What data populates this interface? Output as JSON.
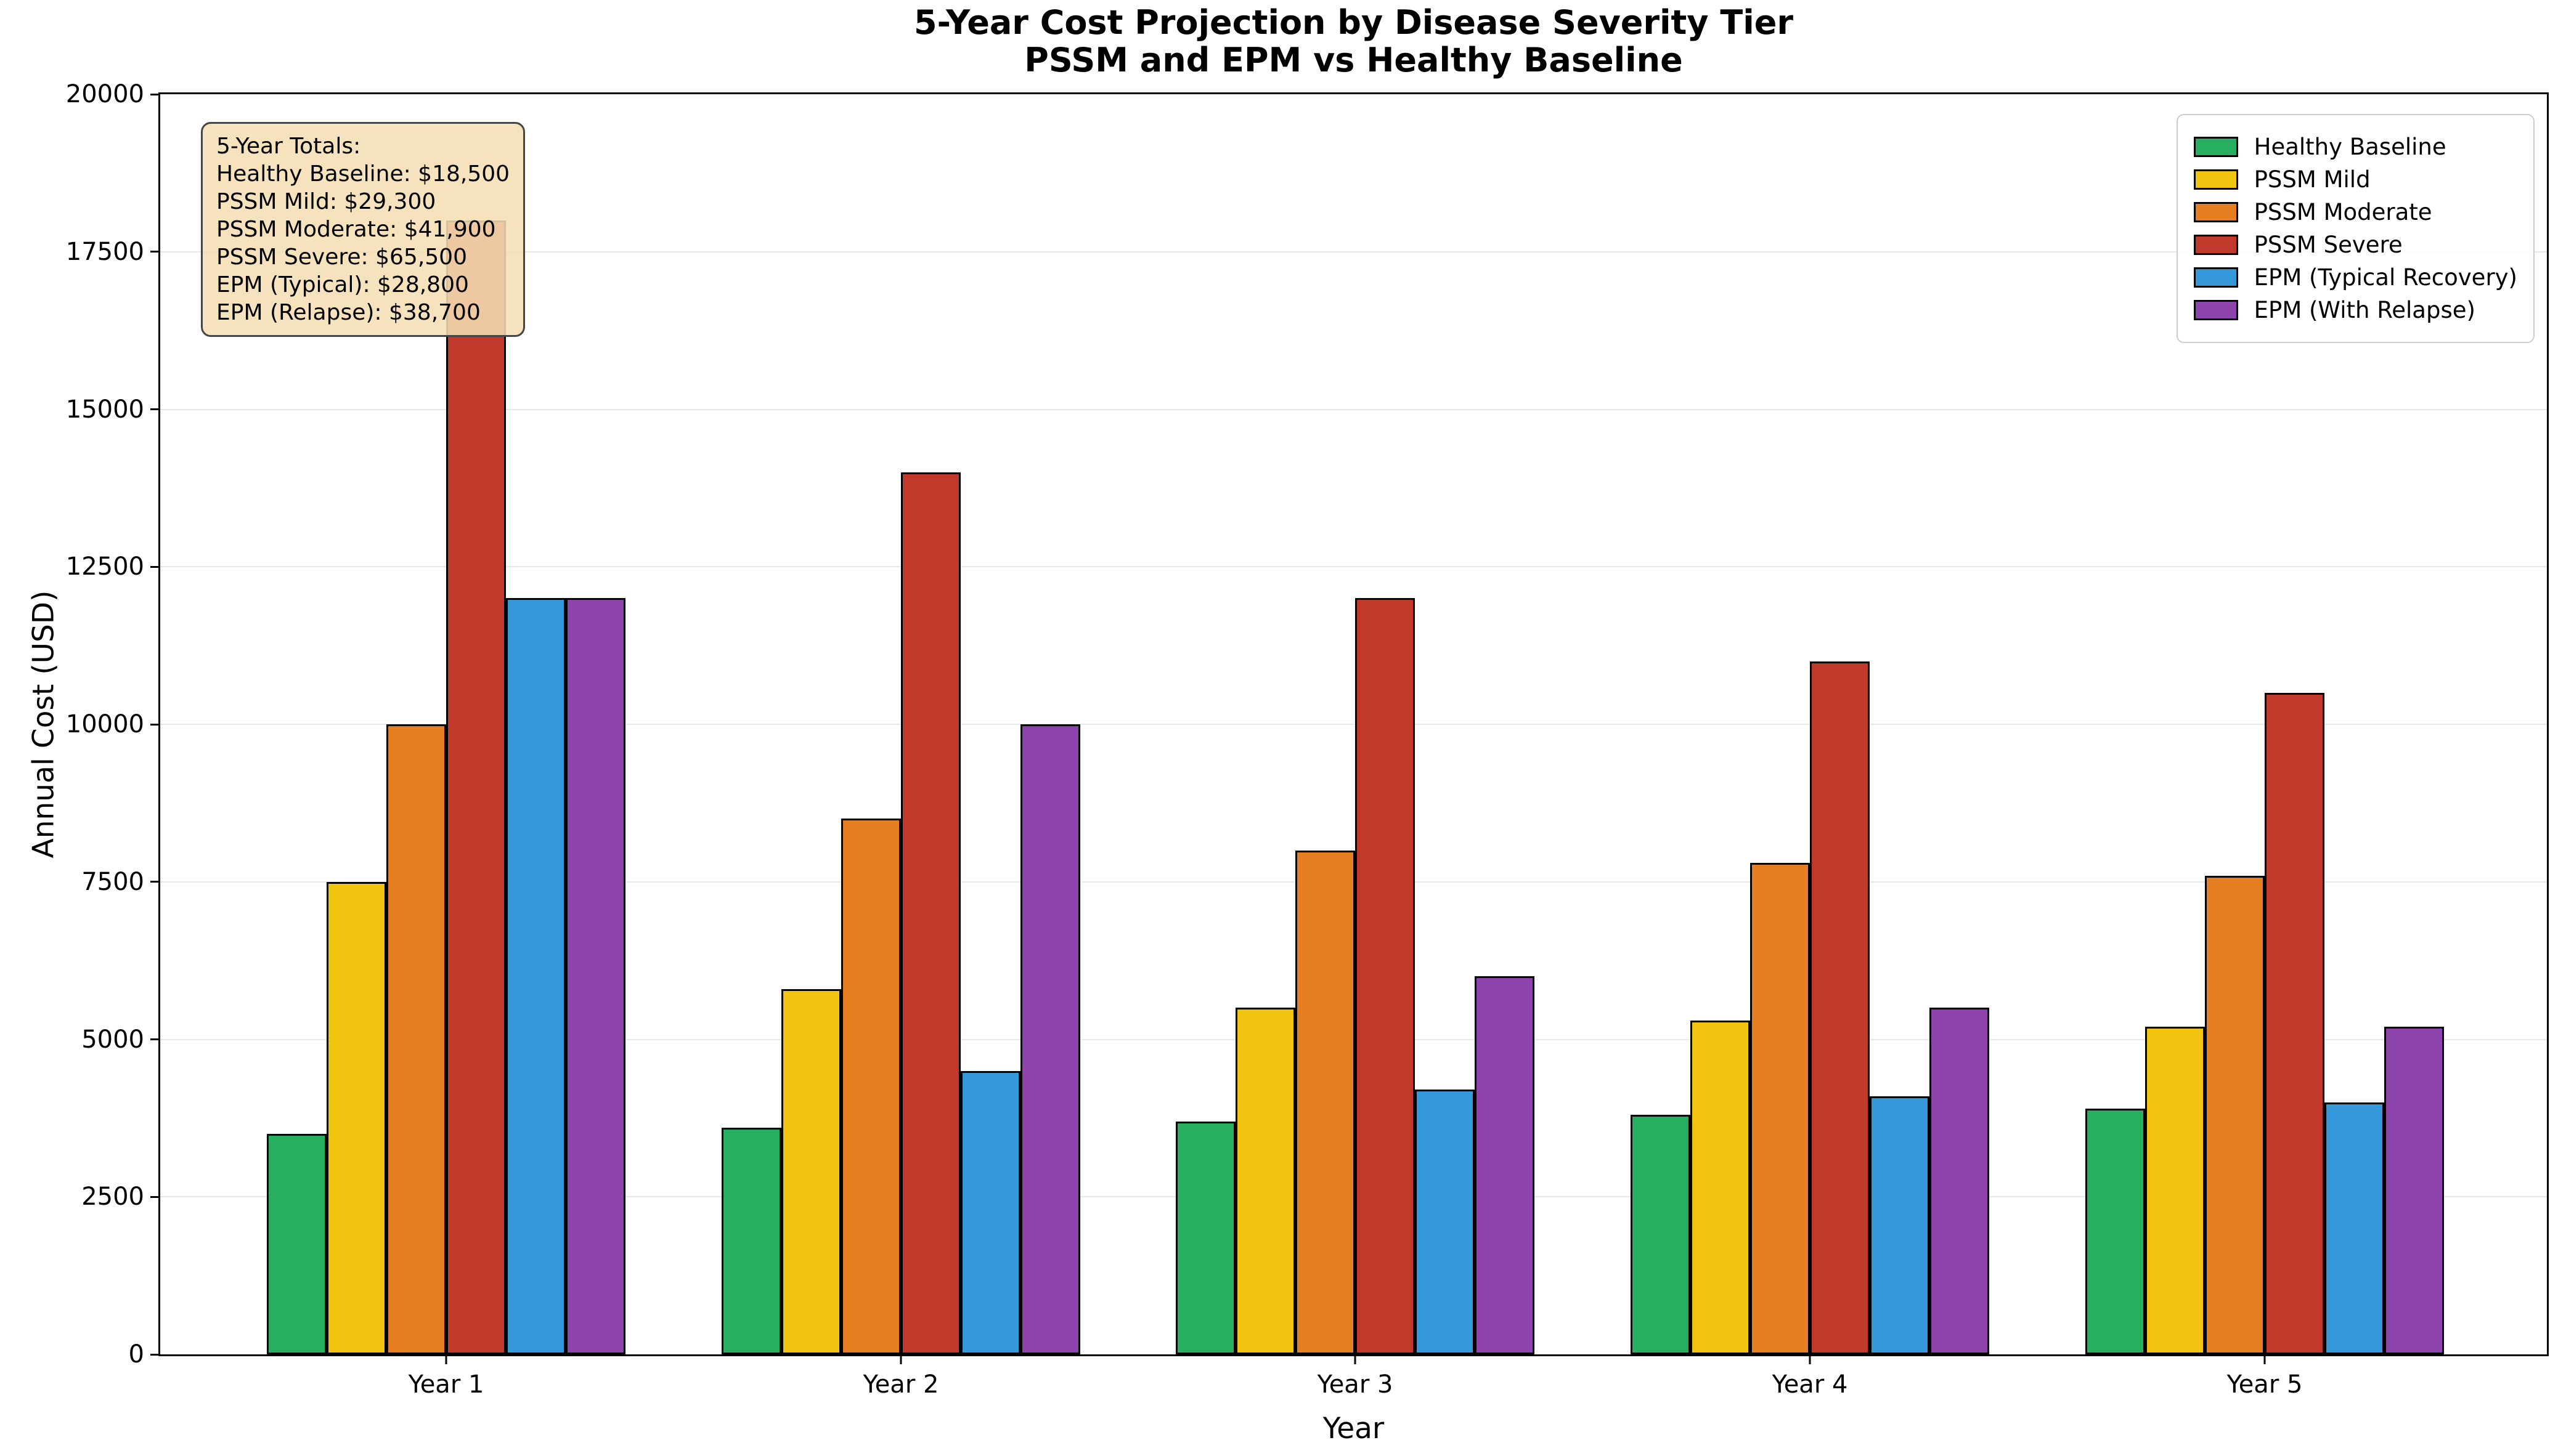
{
  "chart_data": {
    "type": "bar",
    "title": "5-Year Cost Projection by Disease Severity Tier",
    "subtitle": "PSSM and EPM vs Healthy Baseline",
    "xlabel": "Year",
    "ylabel": "Annual Cost (USD)",
    "categories": [
      "Year 1",
      "Year 2",
      "Year 3",
      "Year 4",
      "Year 5"
    ],
    "series": [
      {
        "name": "Healthy Baseline",
        "color": "#27ae60",
        "values": [
          3500,
          3600,
          3700,
          3800,
          3900
        ]
      },
      {
        "name": "PSSM Mild",
        "color": "#f1c40f",
        "values": [
          7500,
          5800,
          5500,
          5300,
          5200
        ]
      },
      {
        "name": "PSSM Moderate",
        "color": "#e67e22",
        "values": [
          10000,
          8500,
          8000,
          7800,
          7600
        ]
      },
      {
        "name": "PSSM Severe",
        "color": "#c0392b",
        "values": [
          18000,
          14000,
          12000,
          11000,
          10500
        ]
      },
      {
        "name": "EPM (Typical Recovery)",
        "color": "#3498db",
        "values": [
          12000,
          4500,
          4200,
          4100,
          4000
        ]
      },
      {
        "name": "EPM (With Relapse)",
        "color": "#8e44ad",
        "values": [
          12000,
          10000,
          6000,
          5500,
          5200
        ]
      }
    ],
    "ylim": [
      0,
      20000
    ],
    "yticks": [
      0,
      2500,
      5000,
      7500,
      10000,
      12500,
      15000,
      17500,
      20000
    ],
    "grid": "horizontal",
    "grid_color": "#e7e7e7",
    "bar_edge_color": "#000000",
    "legend_position": "upper-right"
  },
  "annotation": {
    "heading": "5-Year Totals:",
    "lines": [
      "Healthy Baseline: $18,500",
      "PSSM Mild: $29,300",
      "PSSM Moderate: $41,900",
      "PSSM Severe: $65,500",
      "EPM (Typical): $28,800",
      "EPM (Relapse): $38,700"
    ],
    "bg_color": "#f5deb3"
  }
}
